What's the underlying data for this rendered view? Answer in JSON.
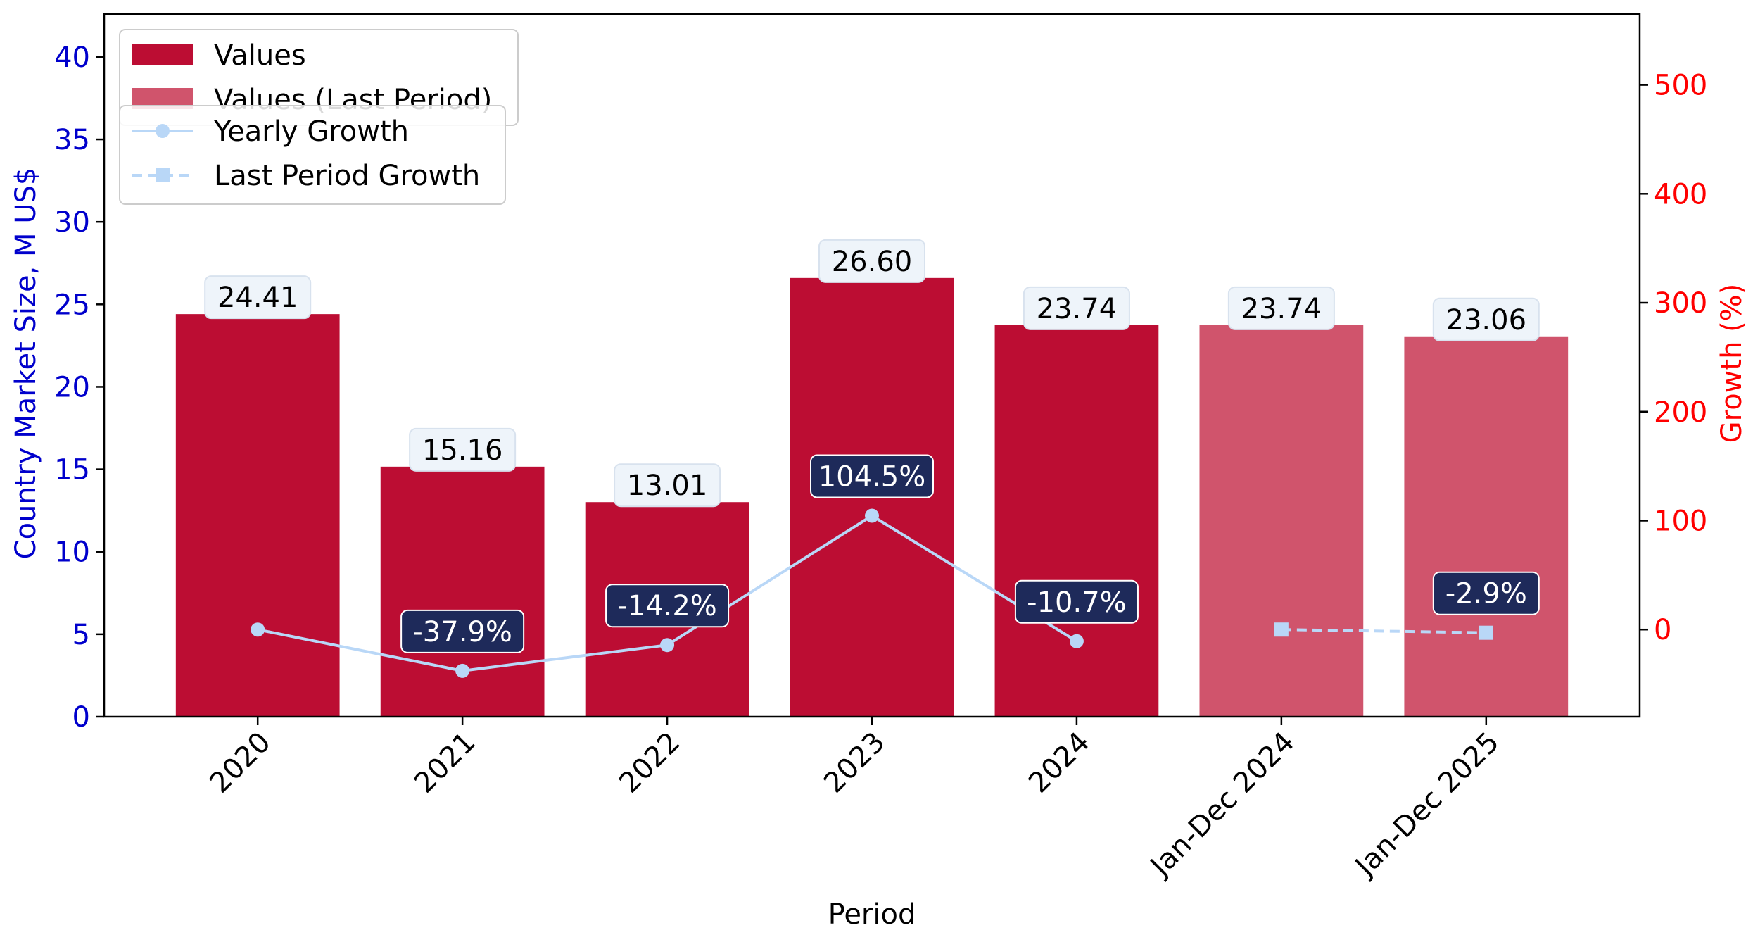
{
  "chart_data": {
    "type": "bar",
    "categories": [
      "2020",
      "2021",
      "2022",
      "2023",
      "2024",
      "Jan-Dec 2024",
      "Jan-Dec 2025"
    ],
    "series": [
      {
        "name": "Values",
        "axis": "left",
        "kind": "bar",
        "color": "#BC0D33",
        "values": [
          24.41,
          15.16,
          13.01,
          26.6,
          23.74,
          null,
          null
        ],
        "labels": [
          "24.41",
          "15.16",
          "13.01",
          "26.60",
          "23.74",
          "",
          ""
        ]
      },
      {
        "name": "Values (Last Period)",
        "axis": "left",
        "kind": "bar",
        "color": "#D0546C",
        "values": [
          null,
          null,
          null,
          null,
          null,
          23.74,
          23.06
        ],
        "labels": [
          "",
          "",
          "",
          "",
          "",
          "23.74",
          "23.06"
        ]
      },
      {
        "name": "Yearly Growth",
        "axis": "right",
        "kind": "line",
        "marker": "circle",
        "color": "#B9D7F7",
        "values": [
          0,
          -37.9,
          -14.2,
          104.5,
          -10.7,
          null,
          null
        ],
        "labels": [
          "",
          "-37.9%",
          "-14.2%",
          "104.5%",
          "-10.7%",
          "",
          ""
        ]
      },
      {
        "name": "Last Period Growth",
        "axis": "right",
        "kind": "line",
        "marker": "square",
        "dash": true,
        "color": "#B9D7F7",
        "values": [
          null,
          null,
          null,
          null,
          null,
          0,
          -2.9
        ],
        "labels": [
          "",
          "",
          "",
          "",
          "",
          "",
          "-2.9%"
        ]
      }
    ],
    "xlabel": "Period",
    "ylabel": "Country Market Size, M US$",
    "y2label": "Growth (%)",
    "ylim": [
      0,
      42.6
    ],
    "y2lim": [
      -80,
      565
    ],
    "yticks": [
      0,
      5,
      10,
      15,
      20,
      25,
      30,
      35,
      40
    ],
    "y2ticks": [
      0,
      100,
      200,
      300,
      400,
      500
    ],
    "grid": false,
    "legend_placement": "top-left",
    "colors": {
      "left_axis": "#0000CC",
      "right_axis": "#FF0000",
      "growth_label_bg": "#1E2A5A"
    }
  }
}
